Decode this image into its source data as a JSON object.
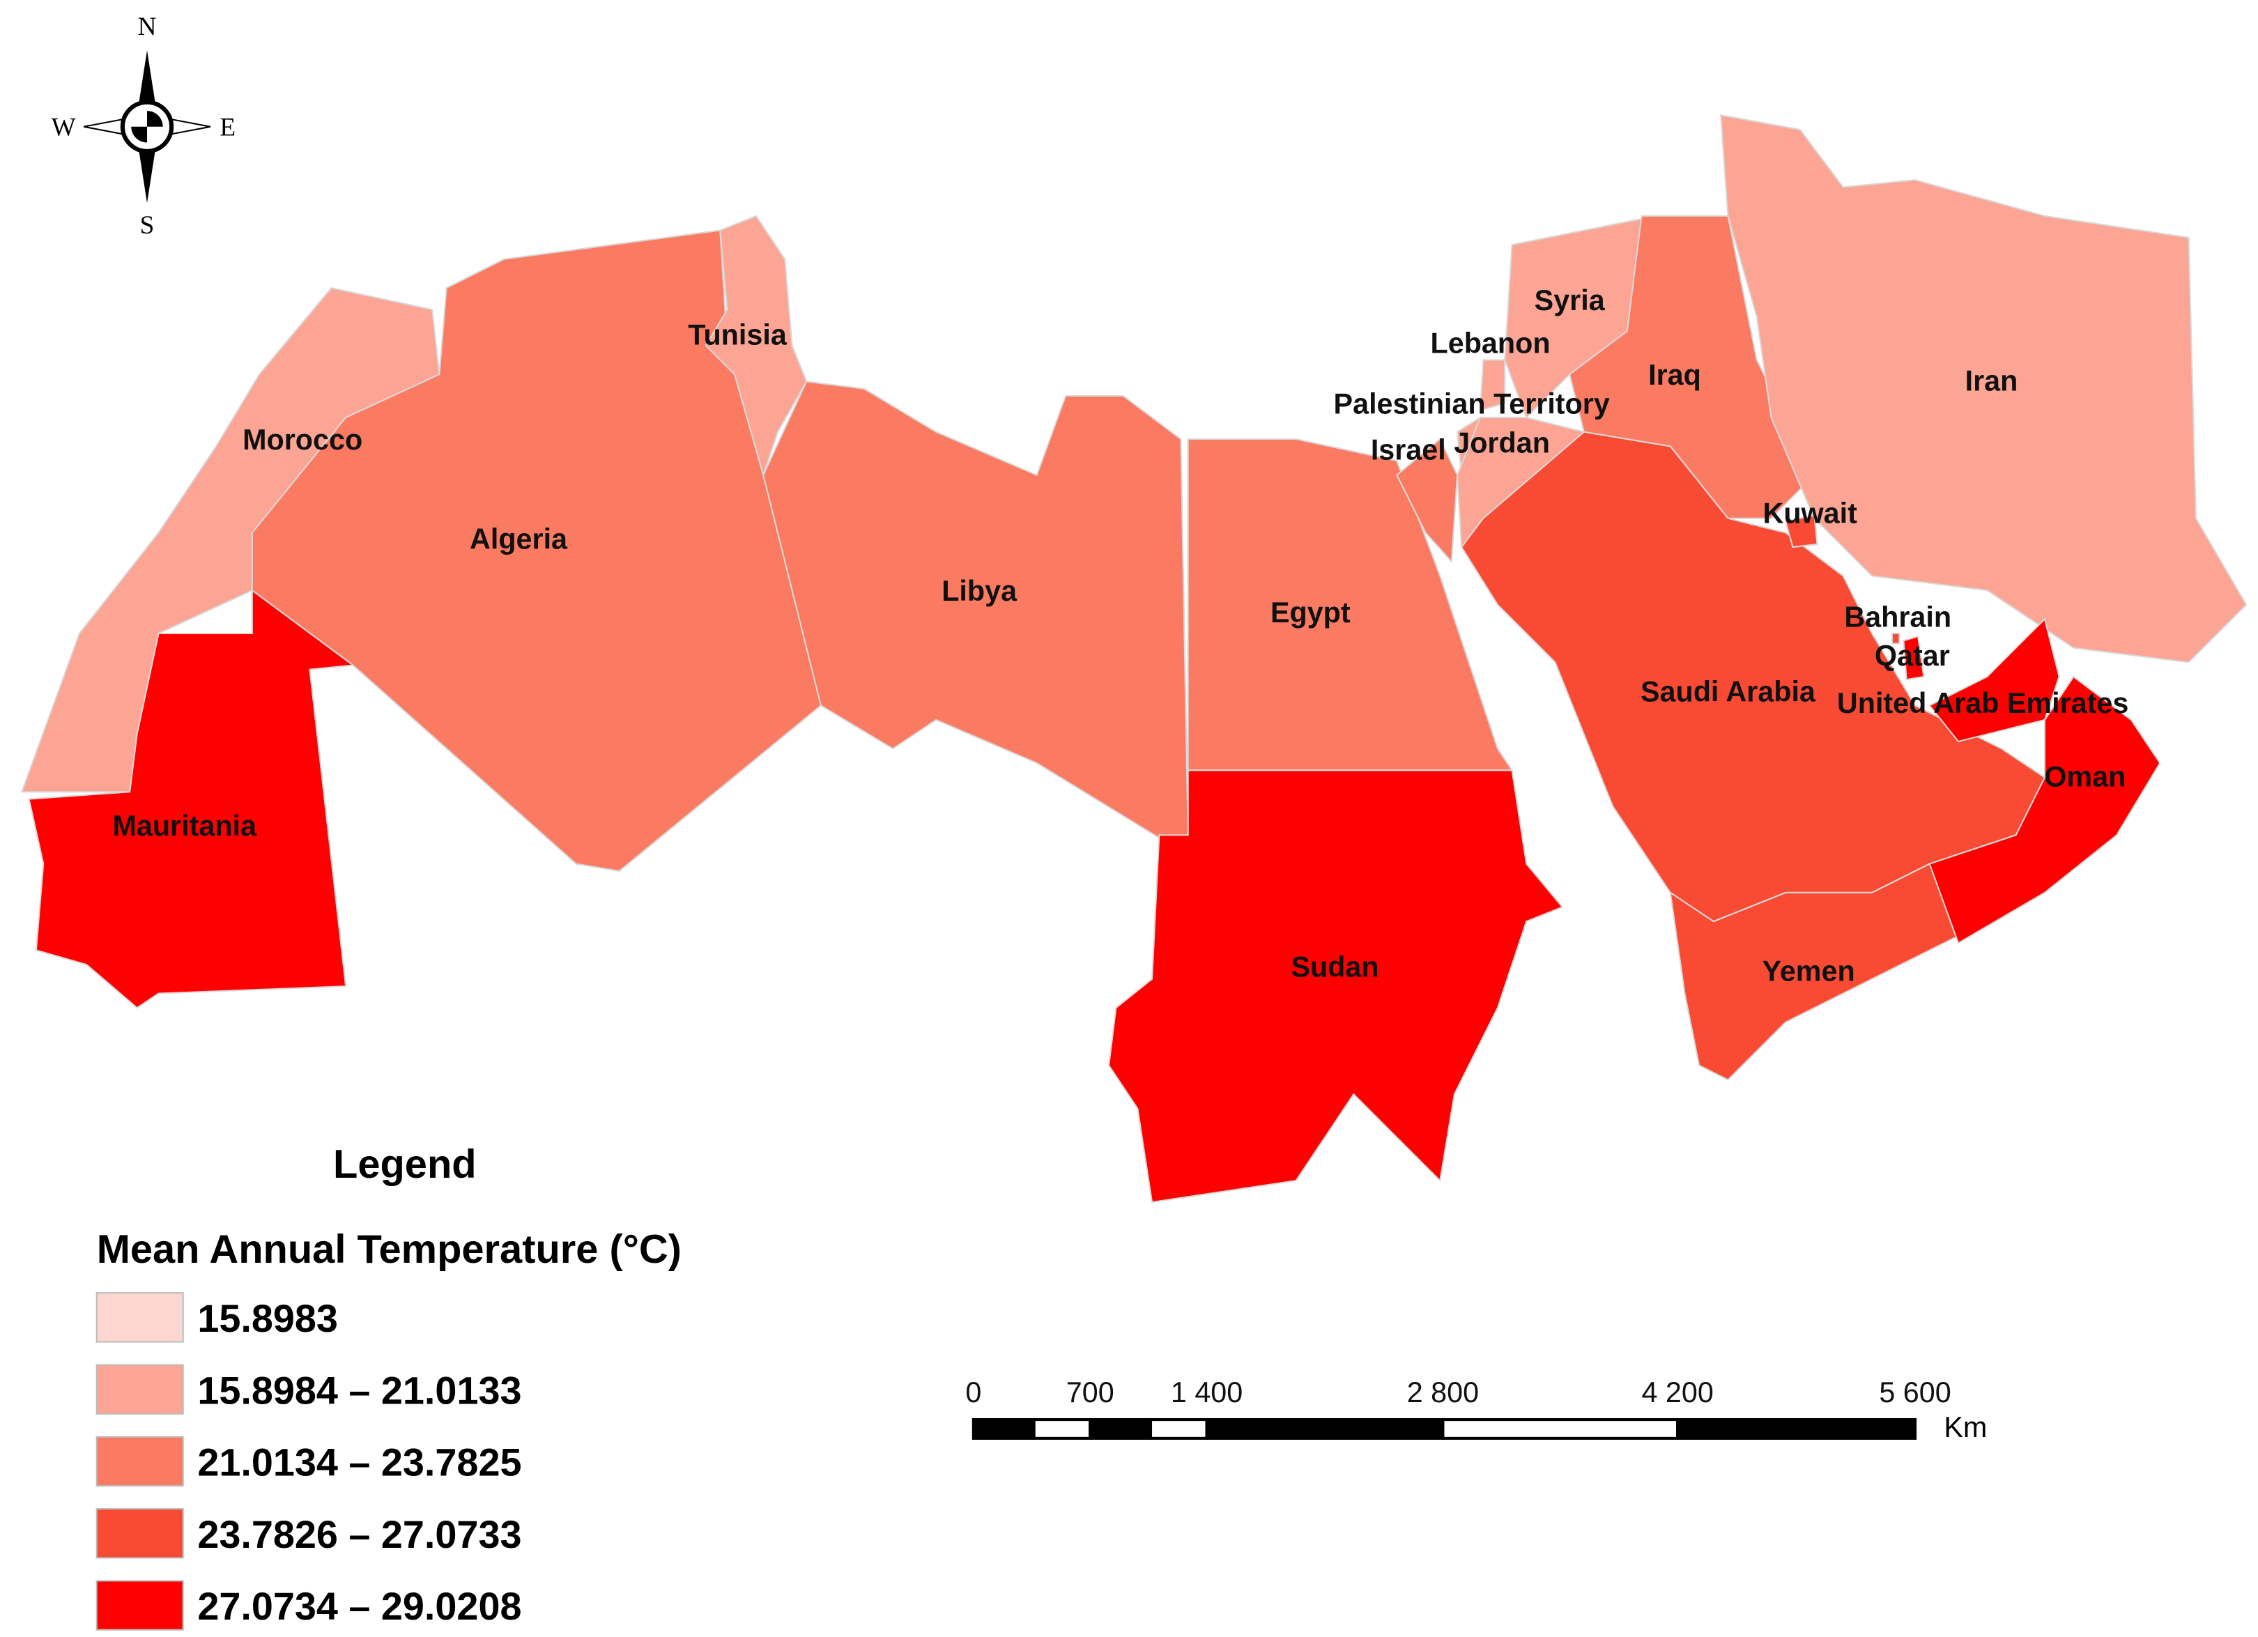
{
  "compass": {
    "n": "N",
    "s": "S",
    "e": "E",
    "w": "W"
  },
  "regions": [
    {
      "name": "Morocco",
      "color": "#fca594"
    },
    {
      "name": "Mauritania",
      "color": "#fe0000"
    },
    {
      "name": "Algeria",
      "color": "#fb7a62"
    },
    {
      "name": "Tunisia",
      "color": "#fca594"
    },
    {
      "name": "Libya",
      "color": "#fb7a62"
    },
    {
      "name": "Egypt",
      "color": "#fb7a62"
    },
    {
      "name": "Sudan",
      "color": "#fe0000"
    },
    {
      "name": "Syria",
      "color": "#fca594"
    },
    {
      "name": "Lebanon",
      "color": "#fca594"
    },
    {
      "name": "Iraq",
      "color": "#fb7a62"
    },
    {
      "name": "Iran",
      "color": "#fca594"
    },
    {
      "name": "Israel",
      "color": "#fb7a62"
    },
    {
      "name": "Palestinian Territory",
      "color": "#fca594"
    },
    {
      "name": "Jordan",
      "color": "#fca594"
    },
    {
      "name": "Saudi Arabia",
      "color": "#f94b33"
    },
    {
      "name": "Kuwait",
      "color": "#f94b33"
    },
    {
      "name": "Yemen",
      "color": "#f94b33"
    },
    {
      "name": "Oman",
      "color": "#fe0000"
    },
    {
      "name": "United Arab Emirates",
      "color": "#fe0000"
    },
    {
      "name": "Bahrain",
      "color": "#f94b33"
    },
    {
      "name": "Qatar",
      "color": "#fe0000"
    }
  ],
  "legend": {
    "title": "Legend",
    "heading": "Mean Annual Temperature (°C)",
    "classes": [
      {
        "label": "15.8983",
        "color": "#fdd6d2"
      },
      {
        "label": "15.8984 – 21.0133",
        "color": "#fca594"
      },
      {
        "label": "21.0134 – 23.7825",
        "color": "#fb7a62"
      },
      {
        "label": "23.7826 – 27.0733",
        "color": "#f94b33"
      },
      {
        "label": "27.0734 – 29.0208",
        "color": "#fe0000"
      }
    ]
  },
  "scale_bar": {
    "labels": [
      "0",
      "700",
      "1 400",
      "2 800",
      "4 200",
      "5 600"
    ],
    "unit": "Km"
  }
}
